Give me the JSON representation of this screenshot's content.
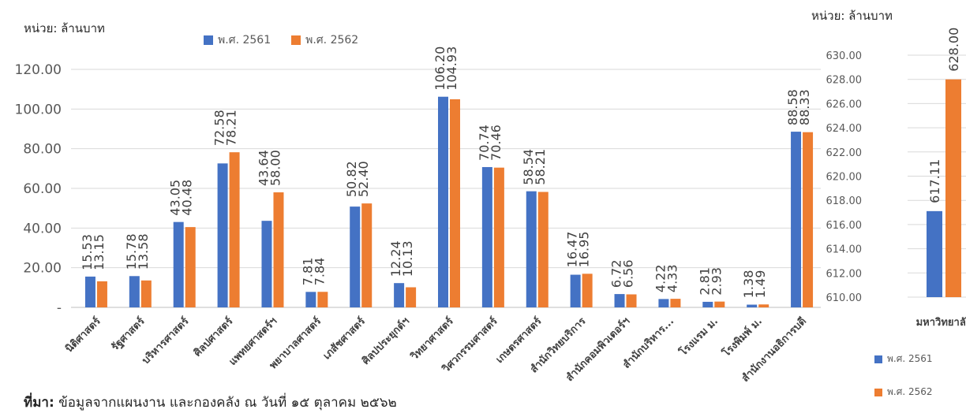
{
  "unit_label_main": "หน่วย: ล้านบาท",
  "unit_label_side": "หน่วย: ล้านบาท",
  "source": {
    "prefix": "ที่มา:",
    "text": " ข้อมูลจากแผนงาน และกองคลัง ณ วันที่ ๑๕ ตุลาคม ๒๕๖๒"
  },
  "colors": {
    "series_2561": "#4472C4",
    "series_2562": "#ED7D31"
  },
  "chart_data": [
    {
      "type": "bar",
      "ylim": [
        0,
        120
      ],
      "yticks": [
        0,
        20,
        40,
        60,
        80,
        100,
        120
      ],
      "ytick_labels": [
        "-",
        "20.00",
        "40.00",
        "60.00",
        "80.00",
        "100.00",
        "120.00"
      ],
      "grid": true,
      "legend_position": "top",
      "categories": [
        "นิติศาสตร์",
        "รัฐศาสตร์",
        "บริหารศาสตร์",
        "ศิลปศาสตร์",
        "แพทยศาสตร์ฯ",
        "พยาบาลศาสตร์",
        "เภสัชศาสตร์",
        "ศิลปประยุกต์ฯ",
        "วิทยาศาสตร์",
        "วิศวกรรมศาสตร์",
        "เกษตรศาสตร์",
        "สำนักวิทยบริการ",
        "สำนักคอมพิวเตอร์ฯ",
        "สำนักบริหาร...",
        "โรงแรม ม.",
        "โรงพิมพ์ ม.",
        "สำนักงานอธิการบดี"
      ],
      "series": [
        {
          "name": "พ.ศ. 2561",
          "values": [
            15.53,
            15.78,
            43.05,
            72.58,
            43.64,
            7.81,
            50.82,
            12.24,
            106.2,
            70.74,
            58.54,
            16.47,
            6.72,
            4.22,
            2.81,
            1.38,
            88.58
          ],
          "labels": [
            "15.53",
            "15.78",
            "43.05",
            "72.58",
            "43.64",
            "7.81",
            "50.82",
            "12.24",
            "106.20",
            "70.74",
            "58.54",
            "16.47",
            "6.72",
            "4.22",
            "2.81",
            "1.38",
            "88.58"
          ]
        },
        {
          "name": "พ.ศ. 2562",
          "values": [
            13.15,
            13.58,
            40.48,
            78.21,
            58.0,
            7.84,
            52.4,
            10.13,
            104.93,
            70.46,
            58.21,
            16.95,
            6.56,
            4.33,
            2.93,
            1.49,
            88.33
          ],
          "labels": [
            "13.15",
            "13.58",
            "40.48",
            "78.21",
            "58.00",
            "7.84",
            "52.40",
            "10.13",
            "104.93",
            "70.46",
            "58.21",
            "16.95",
            "6.56",
            "4.33",
            "2.93",
            "1.49",
            "88.33"
          ]
        }
      ]
    },
    {
      "type": "bar",
      "ylim": [
        610,
        630
      ],
      "yticks": [
        610,
        612,
        614,
        616,
        618,
        620,
        622,
        624,
        626,
        628,
        630
      ],
      "ytick_labels": [
        "610.00",
        "612.00",
        "614.00",
        "616.00",
        "618.00",
        "620.00",
        "622.00",
        "624.00",
        "626.00",
        "628.00",
        "630.00"
      ],
      "grid": true,
      "legend_position": "bottom",
      "categories": [
        "มหาวิทยาลัย"
      ],
      "series": [
        {
          "name": "พ.ศ. 2561",
          "values": [
            617.11
          ],
          "labels": [
            "617.11"
          ]
        },
        {
          "name": "พ.ศ. 2562",
          "values": [
            628.0
          ],
          "labels": [
            "628.00"
          ]
        }
      ]
    }
  ]
}
